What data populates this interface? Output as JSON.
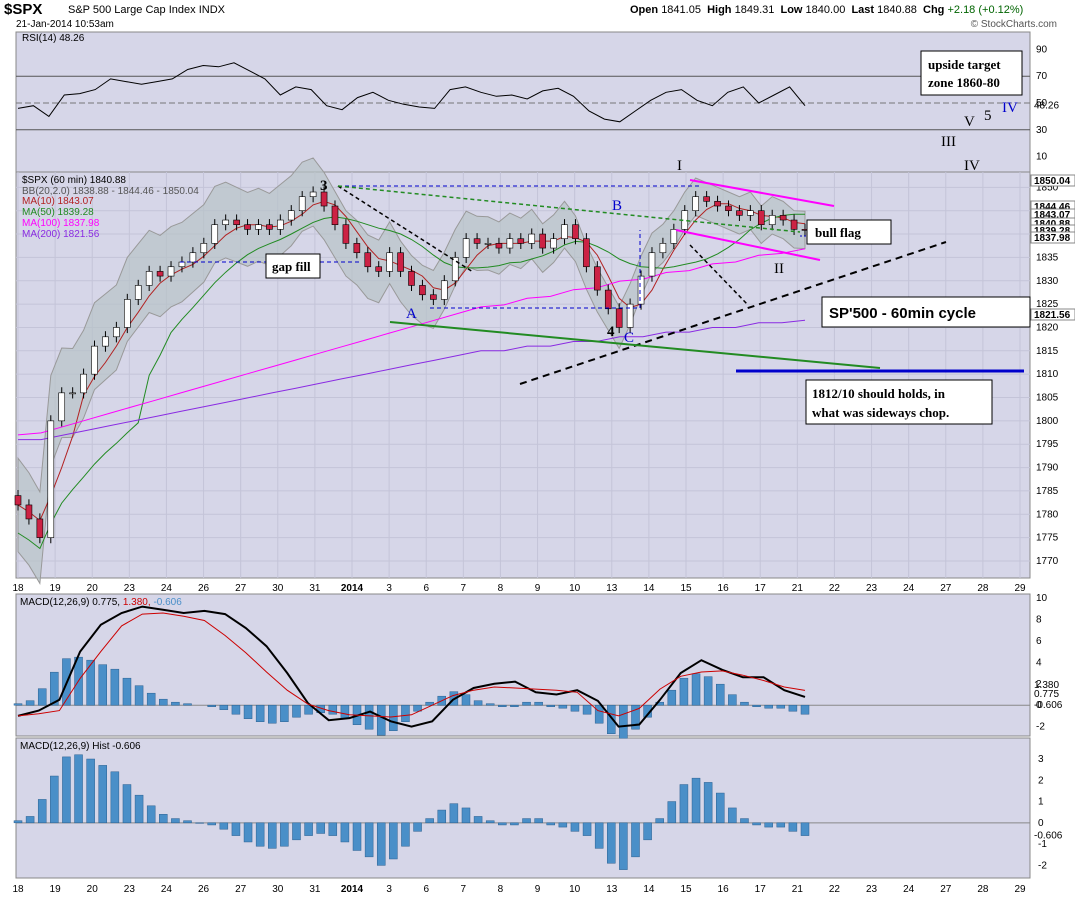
{
  "header": {
    "ticker": "$SPX",
    "index_name": "S&P 500 Large Cap Index",
    "exchange": "INDX",
    "datetime": "21-Jan-2014 10:53am",
    "open_label": "Open",
    "open": "1841.05",
    "high_label": "High",
    "high": "1849.31",
    "low_label": "Low",
    "low": "1840.00",
    "last_label": "Last",
    "last": "1840.88",
    "chg_label": "Chg",
    "chg": "+2.18 (+0.12%)",
    "copyright": "© StockCharts.com"
  },
  "panels": {
    "rsi_title": "RSI(14) 48.26",
    "price_title": "$SPX (60 min) 1840.88",
    "bb_legend": "BB(20,2.0) 1838.88 - 1844.46 - 1850.04",
    "ma10_legend": "MA(10) 1843.07",
    "ma50_legend": "MA(50) 1839.28",
    "ma100_legend": "MA(100) 1837.98",
    "ma200_legend": "MA(200) 1821.56",
    "macd_title_a": "MACD(12,26,9)",
    "macd_title_b": "0.775,",
    "macd_title_c": "1.380,",
    "macd_title_d": "-0.606",
    "hist_title": "MACD(12,26,9) Hist -0.606"
  },
  "annotations": {
    "upside_target_1": "upside target",
    "upside_target_2": "zone 1860-80",
    "gap_fill": "gap fill",
    "bull_flag": "bull flag",
    "cycle": "SP'500 - 60min cycle",
    "hold_1": "1812/10 should holds, in",
    "hold_2": "what was sideways chop.",
    "wave_labels": {
      "w3": "3",
      "wA": "A",
      "wB": "B",
      "wC": "C",
      "w4": "4",
      "wI": "I",
      "wII": "II",
      "wIII": "III",
      "wIV_black": "IV",
      "wV": "V",
      "w5": "5",
      "wIV_blue": "IV"
    }
  },
  "colors": {
    "bg": "#d6d6e8",
    "bb_fill": "#b8c3c8",
    "up": "#ffffff",
    "down": "#cc2244",
    "ma10": "#b22222",
    "ma50": "#228b22",
    "ma100": "#ff00ff",
    "ma200": "#8a2be2",
    "macd_hist": "#4a8fc8",
    "annotation_blue": "#0000cc"
  },
  "chart_data": [
    {
      "type": "line",
      "name": "RSI panel",
      "ylim": [
        0,
        100
      ],
      "yticks": [
        10,
        30,
        50,
        70,
        90
      ],
      "right_label": "48.26",
      "values": [
        46,
        48,
        40,
        56,
        57,
        60,
        68,
        66,
        64,
        66,
        68,
        75,
        78,
        77,
        80,
        74,
        68,
        56,
        62,
        60,
        48,
        45,
        54,
        58,
        52,
        49,
        47,
        46,
        60,
        62,
        58,
        55,
        56,
        53,
        59,
        61,
        55,
        44,
        38,
        36,
        44,
        52,
        58,
        60,
        52,
        48,
        58,
        62,
        50,
        56,
        62,
        48
      ]
    },
    {
      "type": "candlestick",
      "name": "$SPX (60 min)",
      "ylim": [
        1767,
        1852
      ],
      "yticks": [
        1770,
        1775,
        1780,
        1785,
        1790,
        1795,
        1800,
        1805,
        1810,
        1815,
        1820,
        1825,
        1830,
        1835,
        1840,
        1845,
        1850
      ],
      "right_labels": [
        "1850.04",
        "1844.46",
        "1843.07",
        "1840.88",
        "1839.28",
        "1837.98",
        "1821.56"
      ],
      "x_labels": [
        "18",
        "19",
        "20",
        "23",
        "24",
        "26",
        "27",
        "30",
        "31",
        "2014",
        "3",
        "6",
        "7",
        "8",
        "9",
        "10",
        "13",
        "14",
        "15",
        "16",
        "17",
        "21",
        "22",
        "23",
        "24",
        "27",
        "28",
        "29"
      ],
      "close": [
        1782,
        1779,
        1775,
        1800,
        1806,
        1806,
        1810,
        1816,
        1818,
        1820,
        1826,
        1829,
        1832,
        1831,
        1833,
        1834,
        1836,
        1838,
        1842,
        1843,
        1842,
        1841,
        1842,
        1841,
        1843,
        1845,
        1848,
        1849,
        1846,
        1842,
        1838,
        1836,
        1833,
        1832,
        1836,
        1832,
        1829,
        1827,
        1826,
        1830,
        1835,
        1839,
        1838,
        1838,
        1837,
        1839,
        1838,
        1840,
        1837,
        1839,
        1842,
        1839,
        1833,
        1828,
        1824,
        1820,
        1825,
        1831,
        1836,
        1838,
        1841,
        1845,
        1848,
        1847,
        1846,
        1845,
        1844,
        1845,
        1842,
        1844,
        1843,
        1841,
        1840.88
      ],
      "ma200": [
        1796,
        1796,
        1797,
        1798,
        1799,
        1800,
        1801,
        1802,
        1803,
        1804,
        1805,
        1806,
        1807,
        1808,
        1809,
        1810,
        1811,
        1812,
        1813,
        1814,
        1815,
        1815,
        1816,
        1816,
        1817,
        1817,
        1818,
        1818,
        1819,
        1819,
        1820,
        1820,
        1821,
        1821,
        1821.56
      ]
    },
    {
      "type": "line",
      "name": "MACD(12,26,9)",
      "ylim": [
        -2.5,
        10
      ],
      "yticks": [
        -2,
        0,
        2,
        4,
        6,
        8,
        10
      ],
      "macd": [
        -1,
        -0.5,
        0.5,
        5,
        7.5,
        8.6,
        9.2,
        8.9,
        8.6,
        8.8,
        8.5,
        7.2,
        5.5,
        3,
        0.2,
        -1.4,
        -1.2,
        -0.6,
        -1.5,
        -2,
        -1.5,
        0.5,
        1.6,
        2,
        2.2,
        1.2,
        1,
        1.4,
        0.4,
        -2,
        -1.8,
        0.5,
        3,
        4.2,
        3.3,
        2.6,
        2.6,
        1.4,
        0.775
      ],
      "signal": [
        -1,
        -0.8,
        -0.5,
        2.5,
        5,
        7.4,
        8.5,
        8.6,
        8.3,
        7.9,
        6.5,
        4.9,
        3.1,
        1.4,
        0.1,
        -0.5,
        -0.9,
        -1,
        -1.1,
        -0.9,
        0,
        0.9,
        1.4,
        1.7,
        1.6,
        1.5,
        1.4,
        1.2,
        -0.5,
        -1,
        -0.3,
        1.5,
        2.7,
        3.1,
        3.2,
        2.8,
        2.3,
        1.7,
        1.38
      ],
      "hist_last": -0.606,
      "right_labels": [
        "1.380",
        "0.775",
        "-0.606"
      ]
    },
    {
      "type": "bar",
      "name": "MACD(12,26,9) Hist",
      "ylim": [
        -2.5,
        3.8
      ],
      "yticks": [
        -2,
        -1,
        0,
        1,
        2,
        3
      ],
      "right_label": "-0.606",
      "values": [
        0.1,
        0.3,
        1.1,
        2.2,
        3.1,
        3.2,
        3.0,
        2.7,
        2.4,
        1.8,
        1.3,
        0.8,
        0.4,
        0.2,
        0.1,
        0.0,
        -0.1,
        -0.3,
        -0.6,
        -0.9,
        -1.1,
        -1.2,
        -1.1,
        -0.8,
        -0.6,
        -0.5,
        -0.6,
        -0.9,
        -1.3,
        -1.6,
        -2.0,
        -1.7,
        -1.1,
        -0.4,
        0.2,
        0.6,
        0.9,
        0.7,
        0.3,
        0.1,
        -0.1,
        -0.1,
        0.2,
        0.2,
        -0.1,
        -0.2,
        -0.4,
        -0.6,
        -1.2,
        -1.9,
        -2.2,
        -1.6,
        -0.8,
        0.2,
        1.0,
        1.8,
        2.1,
        1.9,
        1.4,
        0.7,
        0.2,
        -0.1,
        -0.2,
        -0.2,
        -0.4,
        -0.6
      ]
    }
  ]
}
